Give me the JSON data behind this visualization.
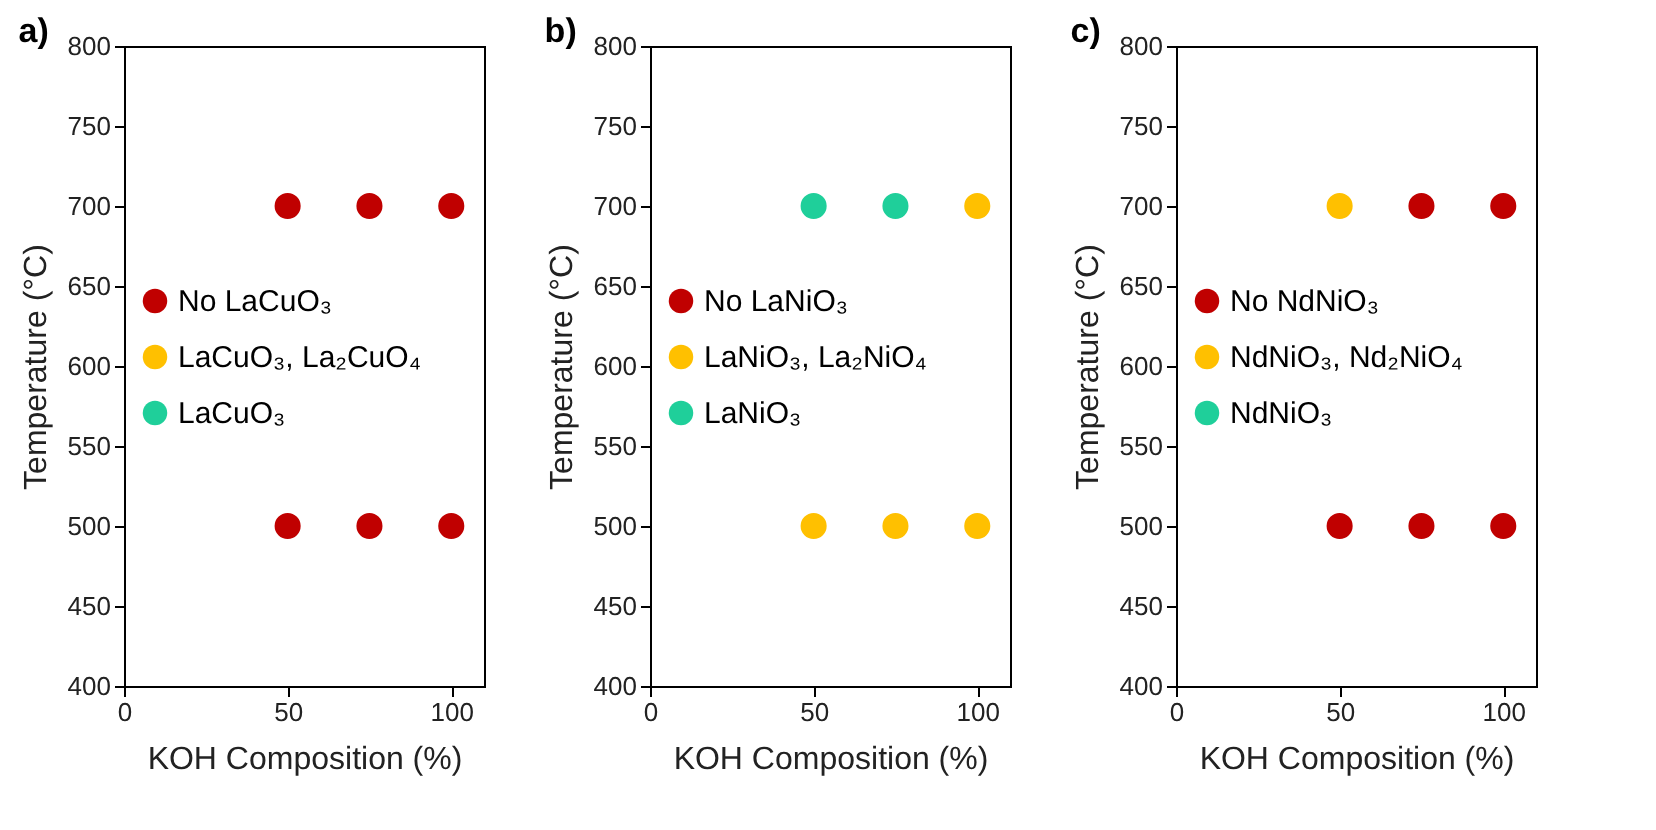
{
  "chart_data": [
    {
      "type": "scatter",
      "title": "a)",
      "xlabel": "KOH Composition (%)",
      "ylabel": "Temperature (°C)",
      "xlim": [
        0,
        110
      ],
      "xticks": [
        0,
        50,
        100
      ],
      "ylim": [
        400,
        800
      ],
      "yticks": [
        400,
        450,
        500,
        550,
        600,
        650,
        700,
        750,
        800
      ],
      "grid": false,
      "legend": "left",
      "marker": "circle",
      "series": [
        {
          "name": "No LaCuO₃",
          "color": "#c00000",
          "x": [
            50,
            75,
            100,
            50,
            75,
            100
          ],
          "values": [
            700,
            700,
            700,
            500,
            500,
            500
          ]
        },
        {
          "name": "LaCuO₃, La₂CuO₄",
          "color": "#ffc000"
        },
        {
          "name": "LaCuO₃",
          "color": "#1fcf9a"
        }
      ]
    },
    {
      "type": "scatter",
      "title": "b)",
      "xlabel": "KOH Composition (%)",
      "ylabel": "Temperature (°C)",
      "xlim": [
        0,
        110
      ],
      "xticks": [
        0,
        50,
        100
      ],
      "ylim": [
        400,
        800
      ],
      "yticks": [
        400,
        450,
        500,
        550,
        600,
        650,
        700,
        750,
        800
      ],
      "grid": false,
      "legend": "left",
      "marker": "circle",
      "series": [
        {
          "name": "No LaNiO₃",
          "color": "#c00000"
        },
        {
          "name": "LaNiO₃, La₂NiO₄",
          "color": "#ffc000",
          "x": [
            100,
            50,
            75,
            100
          ],
          "values": [
            700,
            500,
            500,
            500
          ]
        },
        {
          "name": "LaNiO₃",
          "color": "#1fcf9a",
          "x": [
            50,
            75
          ],
          "values": [
            700,
            700
          ]
        }
      ]
    },
    {
      "type": "scatter",
      "title": "c)",
      "xlabel": "KOH Composition (%)",
      "ylabel": "Temperature (°C)",
      "xlim": [
        0,
        110
      ],
      "xticks": [
        0,
        50,
        100
      ],
      "ylim": [
        400,
        800
      ],
      "yticks": [
        400,
        450,
        500,
        550,
        600,
        650,
        700,
        750,
        800
      ],
      "grid": false,
      "legend": "left",
      "marker": "circle",
      "series": [
        {
          "name": "No NdNiO₃",
          "color": "#c00000",
          "x": [
            75,
            100,
            50,
            75,
            100
          ],
          "values": [
            700,
            700,
            500,
            500,
            500
          ]
        },
        {
          "name": "NdNiO₃, Nd₂NiO₄",
          "color": "#ffc000",
          "x": [
            50
          ],
          "values": [
            700
          ]
        },
        {
          "name": "NdNiO₃",
          "color": "#1fcf9a"
        }
      ]
    }
  ]
}
